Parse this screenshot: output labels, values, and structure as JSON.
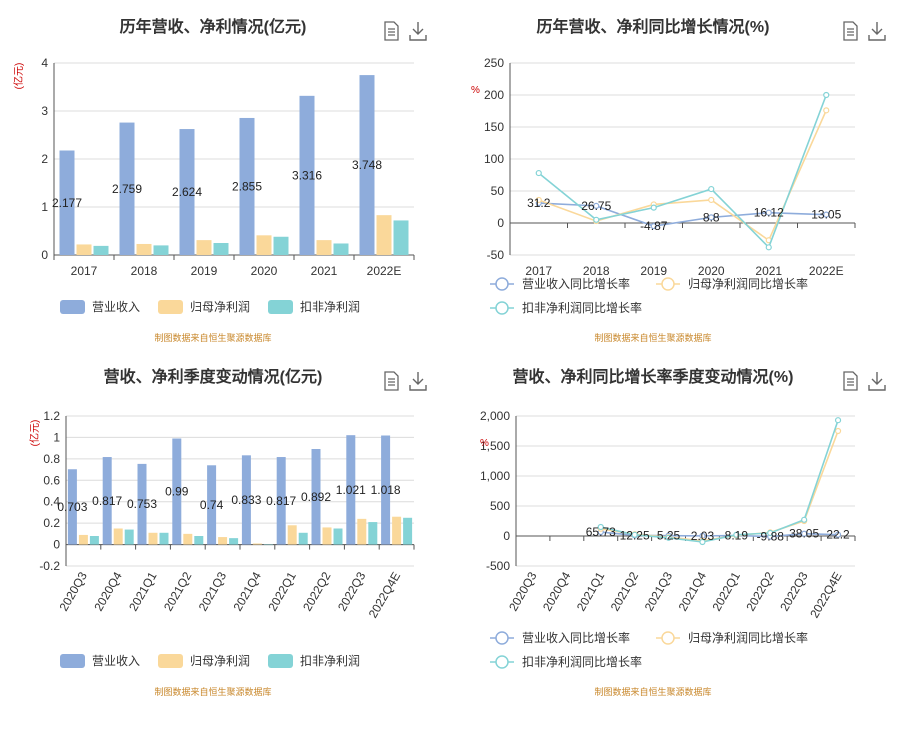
{
  "source_note": "制图数据来自恒生聚源数据库",
  "icons": [
    "document-icon",
    "download-icon"
  ],
  "colors": {
    "revenue": "#8eacdb",
    "parent_profit": "#fad89a",
    "deducted_profit": "#84d3d6",
    "unit": "#cc0000",
    "source": "#c8872a",
    "grid": "#dcdcdc",
    "axis": "#555555"
  },
  "chart_data": [
    {
      "type": "bar",
      "title": "历年营收、净利情况(亿元)",
      "unit_label": "(亿元)",
      "categories": [
        "2017",
        "2018",
        "2019",
        "2020",
        "2021",
        "2022E"
      ],
      "ylim": [
        0,
        4
      ],
      "yticks": [
        0,
        1,
        2,
        3,
        4
      ],
      "grid": true,
      "legend_position": "bottom",
      "series": [
        {
          "name": "营业收入",
          "values": [
            2.177,
            2.759,
            2.624,
            2.855,
            3.316,
            3.748
          ],
          "labels": [
            "2.177",
            "2.759",
            "2.624",
            "2.855",
            "3.316",
            "3.748"
          ]
        },
        {
          "name": "归母净利润",
          "values": [
            0.22,
            0.23,
            0.31,
            0.41,
            0.31,
            0.83
          ]
        },
        {
          "name": "扣非净利润",
          "values": [
            0.19,
            0.2,
            0.25,
            0.38,
            0.24,
            0.72
          ]
        }
      ]
    },
    {
      "type": "line",
      "title": "历年营收、净利同比增长情况(%)",
      "unit_label": "%",
      "categories": [
        "2017",
        "2018",
        "2019",
        "2020",
        "2021",
        "2022E"
      ],
      "ylim": [
        -50,
        250
      ],
      "yticks": [
        -50,
        0,
        50,
        100,
        150,
        200,
        250
      ],
      "grid": true,
      "legend_position": "bottom",
      "series": [
        {
          "name": "营业收入同比增长率",
          "values": [
            31.2,
            26.75,
            -4.87,
            8.8,
            16.12,
            13.05
          ],
          "labels": [
            "31.2",
            "26.75",
            "-4.87",
            "8.8",
            "16.12",
            "13.05"
          ]
        },
        {
          "name": "归母净利润同比增长率",
          "values": [
            36,
            3,
            29,
            36,
            -27,
            176
          ]
        },
        {
          "name": "扣非净利润同比增长率",
          "values": [
            78,
            5,
            24,
            53,
            -38,
            200
          ]
        }
      ]
    },
    {
      "type": "bar",
      "title": "营收、净利季度变动情况(亿元)",
      "unit_label": "(亿元)",
      "categories": [
        "2020Q3",
        "2020Q4",
        "2021Q1",
        "2021Q2",
        "2021Q3",
        "2021Q4",
        "2022Q1",
        "2022Q2",
        "2022Q3",
        "2022Q4E"
      ],
      "ylim": [
        -0.2,
        1.2
      ],
      "yticks": [
        -0.2,
        0,
        0.2,
        0.4,
        0.6,
        0.8,
        1,
        1.2
      ],
      "grid": true,
      "legend_position": "bottom",
      "series": [
        {
          "name": "营业收入",
          "values": [
            0.703,
            0.817,
            0.753,
            0.99,
            0.74,
            0.833,
            0.817,
            0.892,
            1.021,
            1.018
          ],
          "labels": [
            "0.703",
            "0.817",
            "0.753",
            "0.99",
            "0.74",
            "0.833",
            "0.817",
            "0.892",
            "1.021",
            "1.018"
          ]
        },
        {
          "name": "归母净利润",
          "values": [
            0.09,
            0.15,
            0.11,
            0.1,
            0.07,
            0.01,
            0.18,
            0.16,
            0.24,
            0.26
          ]
        },
        {
          "name": "扣非净利润",
          "values": [
            0.08,
            0.14,
            0.11,
            0.08,
            0.06,
            0.0,
            0.11,
            0.15,
            0.21,
            0.25
          ]
        }
      ]
    },
    {
      "type": "line",
      "title": "营收、净利同比增长率季度变动情况(%)",
      "unit_label": "%",
      "categories": [
        "2020Q3",
        "2020Q4",
        "2021Q1",
        "2021Q2",
        "2021Q3",
        "2021Q4",
        "2022Q1",
        "2022Q2",
        "2022Q3",
        "2022Q4E"
      ],
      "ylim": [
        -500,
        2000
      ],
      "yticks": [
        -500,
        0,
        500,
        1000,
        1500,
        2000
      ],
      "ytick_labels": [
        "-500",
        "0",
        "500",
        "1,000",
        "1,500",
        "2,000"
      ],
      "grid": true,
      "legend_position": "bottom",
      "series": [
        {
          "name": "营业收入同比增长率",
          "values": [
            null,
            null,
            65.73,
            12.25,
            5.25,
            2.03,
            8.19,
            -9.88,
            38.05,
            22.2
          ],
          "labels": [
            "",
            "",
            "65.73",
            "12.25",
            "5.25",
            "2.03",
            "8.19",
            "-9.88",
            "38.05",
            "22.2"
          ]
        },
        {
          "name": "归母净利润同比增长率",
          "values": [
            null,
            null,
            120,
            30,
            -20,
            -80,
            10,
            60,
            250,
            1750
          ]
        },
        {
          "name": "扣非净利润同比增长率",
          "values": [
            null,
            null,
            150,
            20,
            -30,
            -100,
            20,
            50,
            270,
            1930
          ]
        }
      ]
    }
  ]
}
